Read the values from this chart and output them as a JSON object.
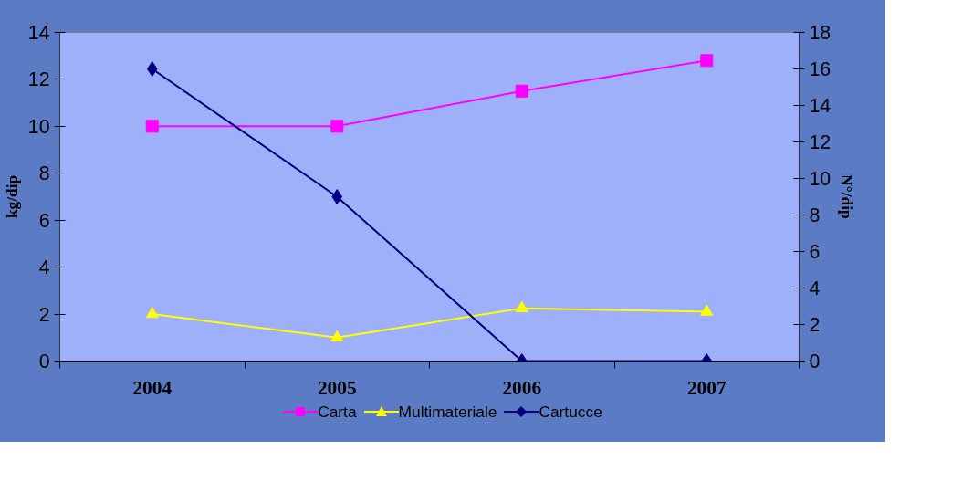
{
  "chart_data": {
    "type": "line",
    "categories": [
      "2004",
      "2005",
      "2006",
      "2007"
    ],
    "ylabel": "kg/dip",
    "y2label": "N°/dip",
    "ylim": [
      0,
      14
    ],
    "yticks": [
      0,
      2,
      4,
      6,
      8,
      10,
      12,
      14
    ],
    "y2lim": [
      0,
      18
    ],
    "y2ticks": [
      0,
      2,
      4,
      6,
      8,
      10,
      12,
      14,
      16,
      18
    ],
    "series": [
      {
        "name": "Carta",
        "color": "#ff00ff",
        "marker": "square",
        "values": [
          10,
          10,
          11.5,
          12.8
        ]
      },
      {
        "name": "Multimateriale",
        "color": "#ffff00",
        "marker": "triangle",
        "values": [
          2,
          1,
          2.25,
          2.1
        ]
      },
      {
        "name": "Cartucce",
        "color": "#000080",
        "marker": "diamond",
        "axis": "y2",
        "values": [
          16,
          9,
          0,
          0
        ]
      }
    ],
    "legend": "bottom",
    "grid": false
  }
}
